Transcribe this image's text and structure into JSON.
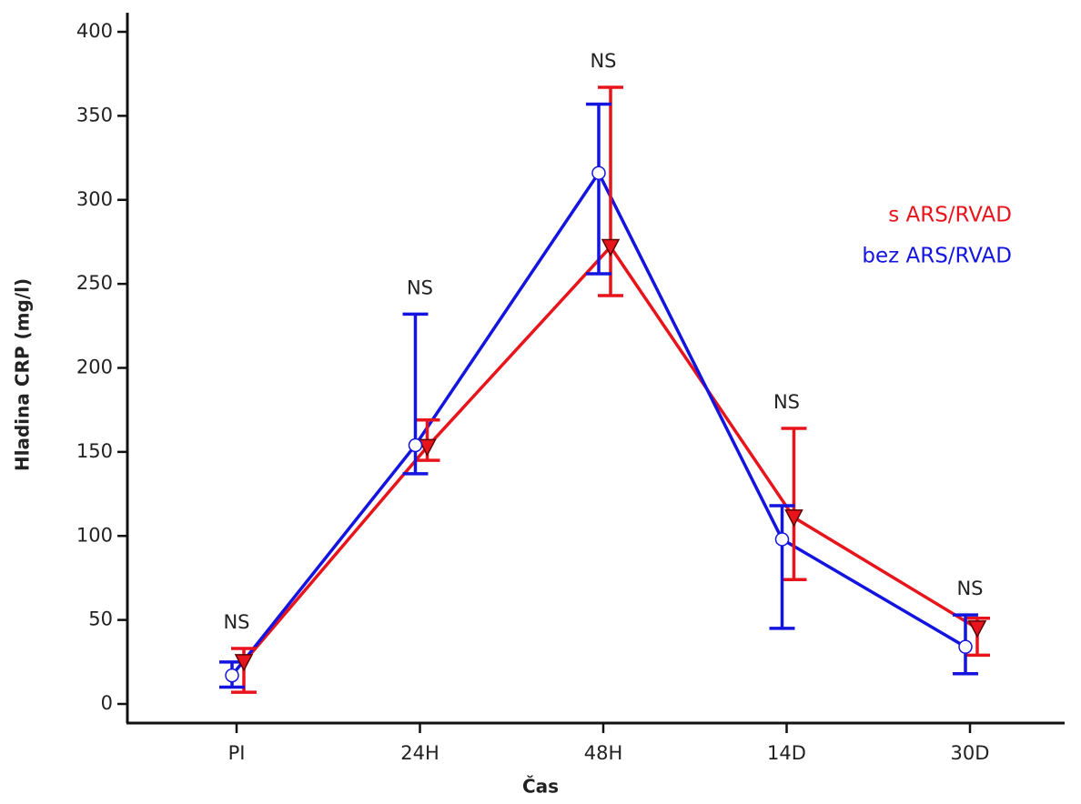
{
  "chart_data": {
    "type": "line",
    "x_label": "Čas",
    "y_label": "Hladina CRP (mg/l)",
    "categories": [
      "PI",
      "24H",
      "48H",
      "14D",
      "30D"
    ],
    "series": [
      {
        "name": "s ARS/RVAD",
        "color": "#e8141c",
        "marker": "triangle-down",
        "values": [
          25,
          153,
          272,
          111,
          45
        ],
        "lower": [
          7,
          145,
          243,
          74,
          29
        ],
        "upper": [
          33,
          169,
          367,
          164,
          51
        ]
      },
      {
        "name": "bez ARS/RVAD",
        "color": "#1414e0",
        "marker": "circle",
        "values": [
          17,
          154,
          316,
          98,
          34
        ],
        "lower": [
          10,
          137,
          256,
          45,
          18
        ],
        "upper": [
          25,
          232,
          357,
          118,
          53
        ]
      }
    ],
    "annotations": [
      "NS",
      "NS",
      "NS",
      "NS",
      "NS"
    ],
    "ylim": [
      0,
      400
    ],
    "yticks": [
      0,
      50,
      100,
      150,
      200,
      250,
      300,
      350,
      400
    ],
    "grid": false,
    "legend": "right"
  }
}
